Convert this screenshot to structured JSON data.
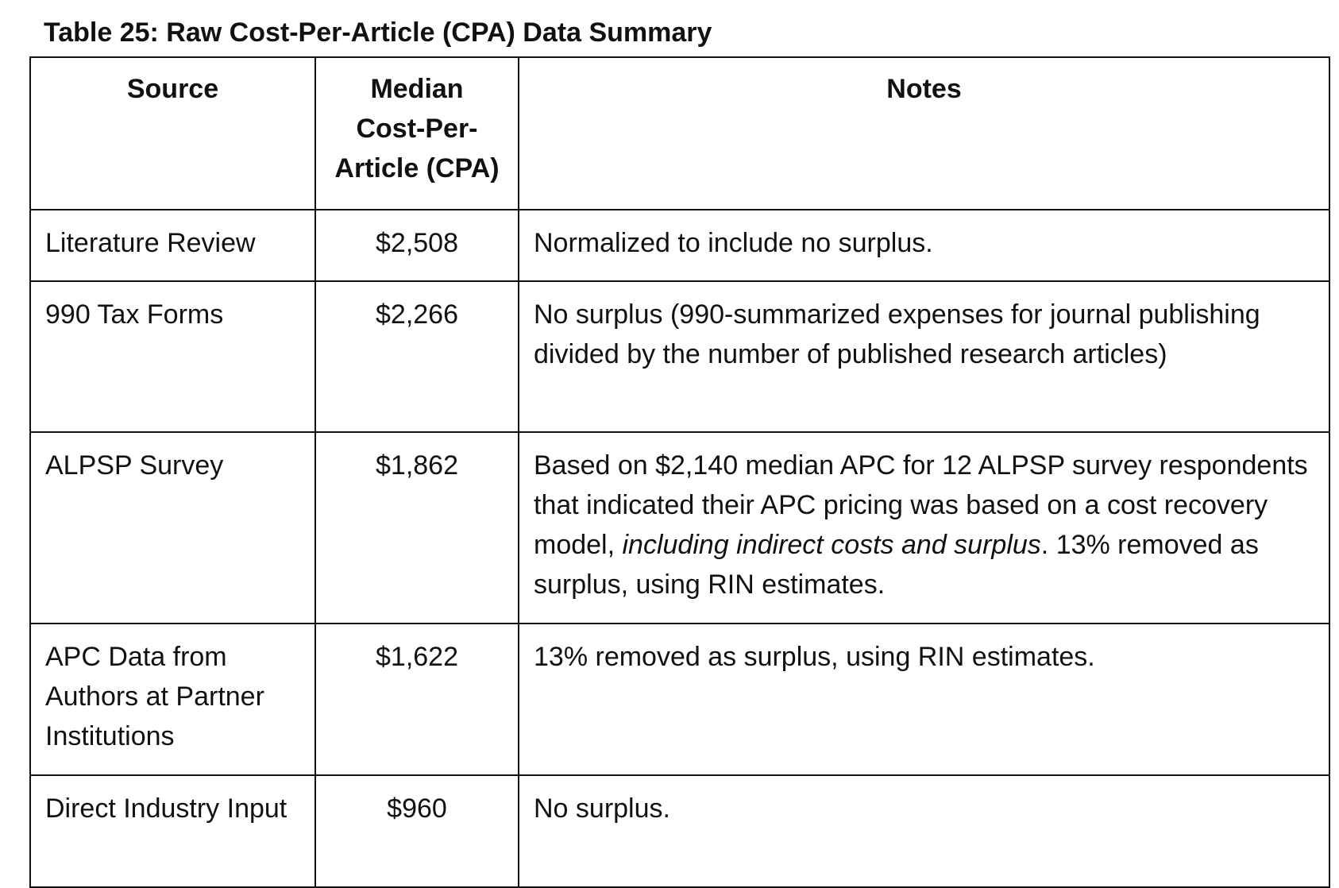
{
  "caption": "Table 25: Raw Cost-Per-Article (CPA) Data Summary",
  "headers": {
    "source": "Source",
    "median_line1": "Median",
    "median_line2": "Cost-Per-",
    "median_line3": "Article (CPA)",
    "notes": "Notes"
  },
  "rows": [
    {
      "source": "Literature Review",
      "median": "$2,508",
      "notes": "Normalized to include no surplus."
    },
    {
      "source": "990 Tax Forms",
      "median": "$2,266",
      "notes": "No surplus (990-summarized expenses for journal publishing divided by the number of published research articles)"
    },
    {
      "source": "ALPSP Survey",
      "median": "$1,862",
      "notes_part1": "Based on $2,140 median APC for 12 ALPSP survey respondents that indicated their APC pricing was based on a cost recovery model, ",
      "notes_italic": "including indirect costs and surplus",
      "notes_part2": ". 13% removed as surplus, using RIN estimates."
    },
    {
      "source": "APC Data from Authors at Partner Institutions",
      "median": "$1,622",
      "notes": "13% removed as surplus, using RIN estimates."
    },
    {
      "source": "Direct Industry Input",
      "median": "$960",
      "notes": "No surplus."
    }
  ]
}
